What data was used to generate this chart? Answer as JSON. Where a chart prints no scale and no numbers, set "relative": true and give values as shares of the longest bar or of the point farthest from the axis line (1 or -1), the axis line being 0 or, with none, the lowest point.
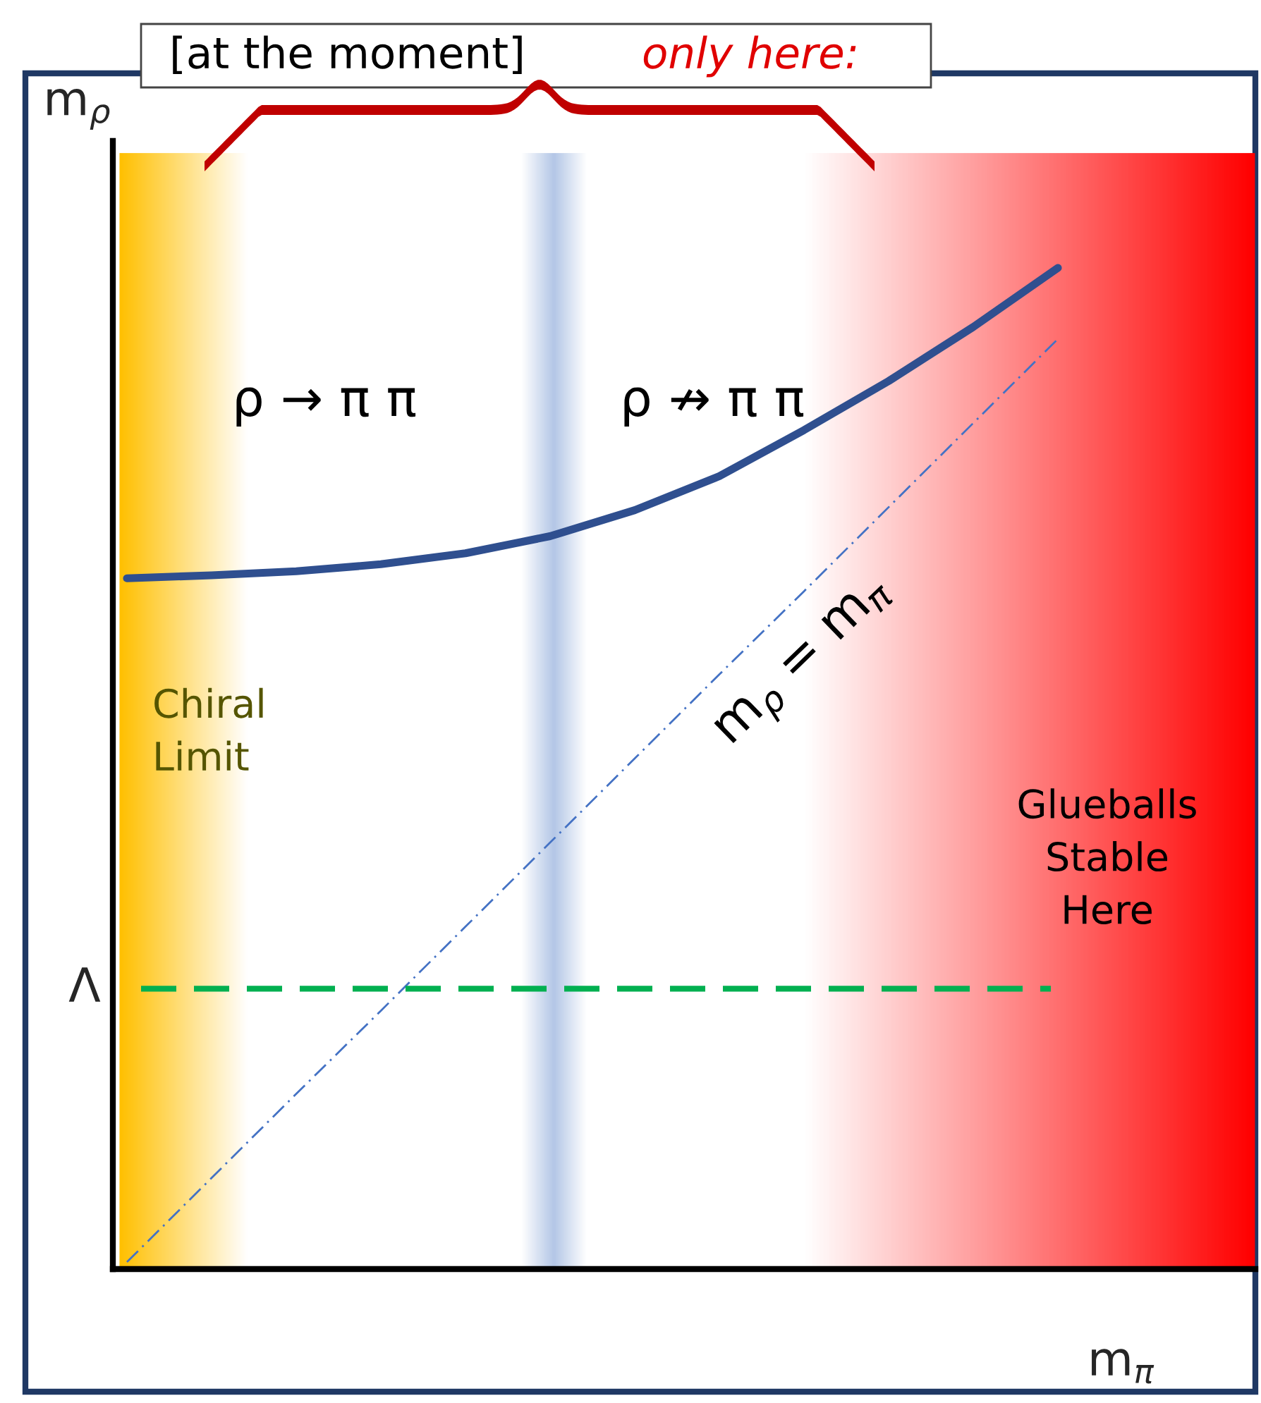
{
  "chart_data": {
    "type": "line",
    "relative": true,
    "xlabel": "m$_{π}$",
    "ylabel": "m$_{ρ}$",
    "categories": [
      null,
      null,
      null,
      null,
      null,
      null,
      null,
      null,
      null,
      null,
      null,
      null
    ],
    "series": [
      {
        "color": "#2f4f8f",
        "values": [
          0.69,
          0.693,
          0.697,
          0.704,
          0.715,
          0.732,
          0.758,
          0.792,
          0.838,
          0.887,
          0.941,
          1
        ]
      },
      {
        "color": "#4472c4",
        "line_style": "dotted",
        "values": [
          0.007,
          0.091,
          0.175,
          0.258,
          0.342,
          0.426,
          0.51,
          0.594,
          0.677,
          0.761,
          0.845,
          0.929
        ]
      }
    ],
    "ref_lines": [
      {
        "axis": "y",
        "value": 0.28,
        "label": "Λ",
        "color": "#00b050",
        "line_style": "dashed"
      }
    ],
    "annotations": [
      "[at the moment]",
      "only here:",
      "ρ → π π",
      "ρ ↛ π π",
      "m$_{ρ}$ = m$_{π}$",
      "Chiral\nLimit",
      "Glueballs\nStable\nHere"
    ],
    "legend": false,
    "tick_labels": false,
    "marker": "none",
    "line_style": "solid"
  }
}
